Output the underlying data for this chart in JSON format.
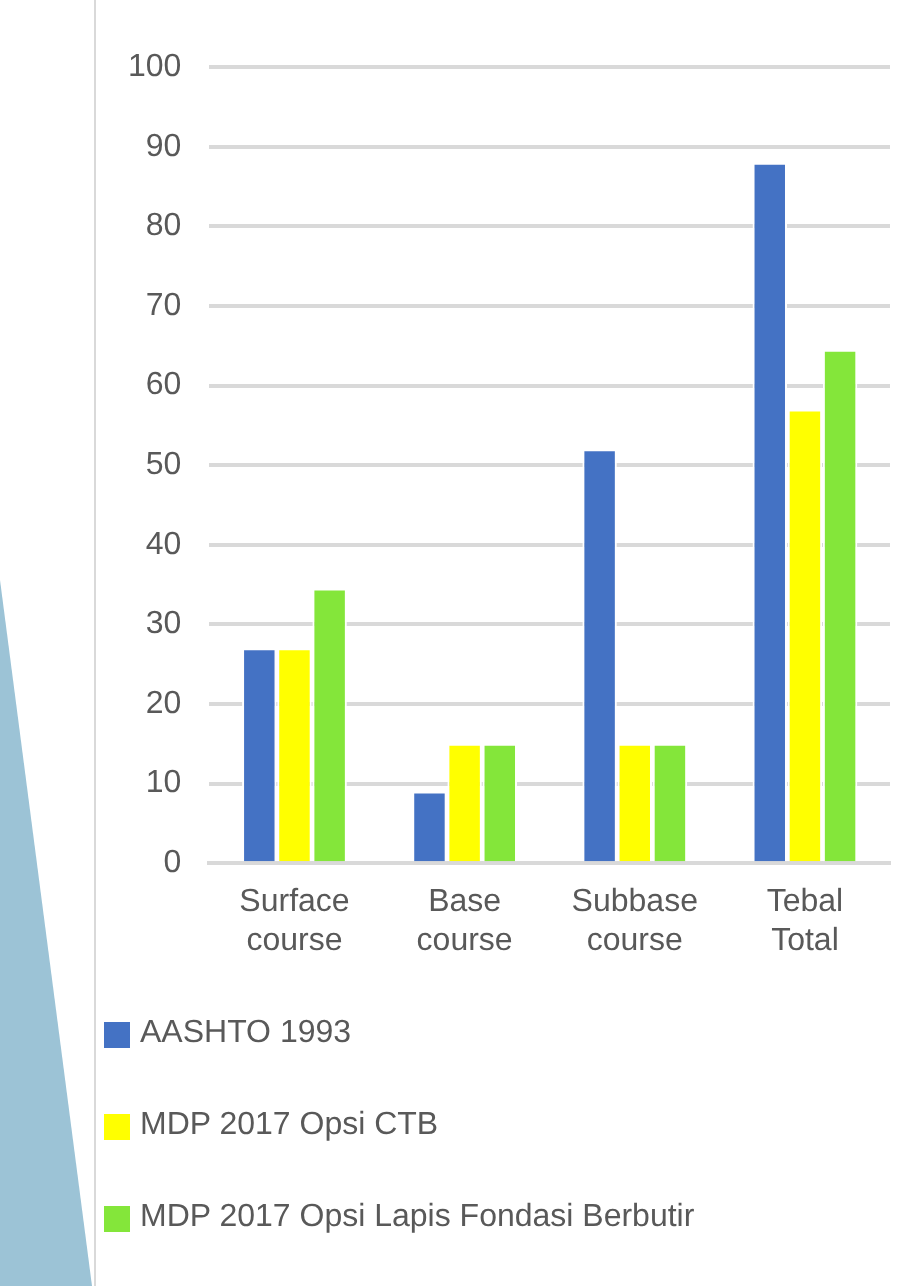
{
  "chart_data": {
    "type": "bar",
    "categories": [
      "Surface course",
      "Base course",
      "Subbase course",
      "Tebal Total"
    ],
    "series": [
      {
        "name": "AASHTO 1993",
        "color": "#4472c4",
        "values": [
          27,
          9,
          52,
          88
        ]
      },
      {
        "name": "MDP 2017 Opsi CTB",
        "color": "#ffff00",
        "values": [
          27,
          15,
          15,
          57
        ]
      },
      {
        "name": "MDP 2017 Opsi Lapis Fondasi Berbutir",
        "color": "#84e63a",
        "values": [
          34.5,
          15,
          15,
          64.5
        ]
      }
    ],
    "ylim": [
      0,
      100
    ],
    "yticks": [
      0,
      10,
      20,
      30,
      40,
      50,
      60,
      70,
      80,
      90,
      100
    ],
    "grid": "y",
    "legend": "bottom"
  }
}
